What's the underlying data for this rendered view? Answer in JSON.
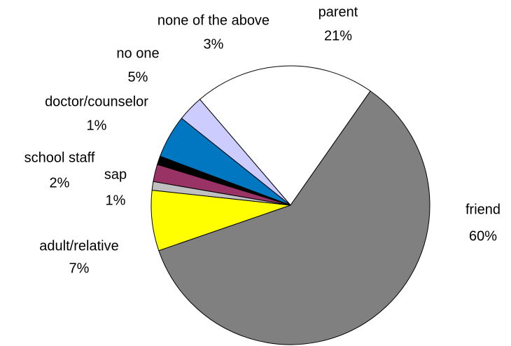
{
  "chart_data": {
    "type": "pie",
    "categories": [
      "parent",
      "friend",
      "adult/relative",
      "sap",
      "school staff",
      "doctor/counselor",
      "no one",
      "none of the above"
    ],
    "values": [
      21,
      60,
      7,
      1,
      2,
      1,
      5,
      3
    ],
    "value_labels": [
      "21%",
      "60%",
      "7%",
      "1%",
      "2%",
      "1%",
      "5%",
      "3%"
    ],
    "colors": [
      "#ffffff",
      "#808080",
      "#ffff00",
      "#c0c0c0",
      "#993366",
      "#000000",
      "#0077c0",
      "#ccccff"
    ]
  }
}
